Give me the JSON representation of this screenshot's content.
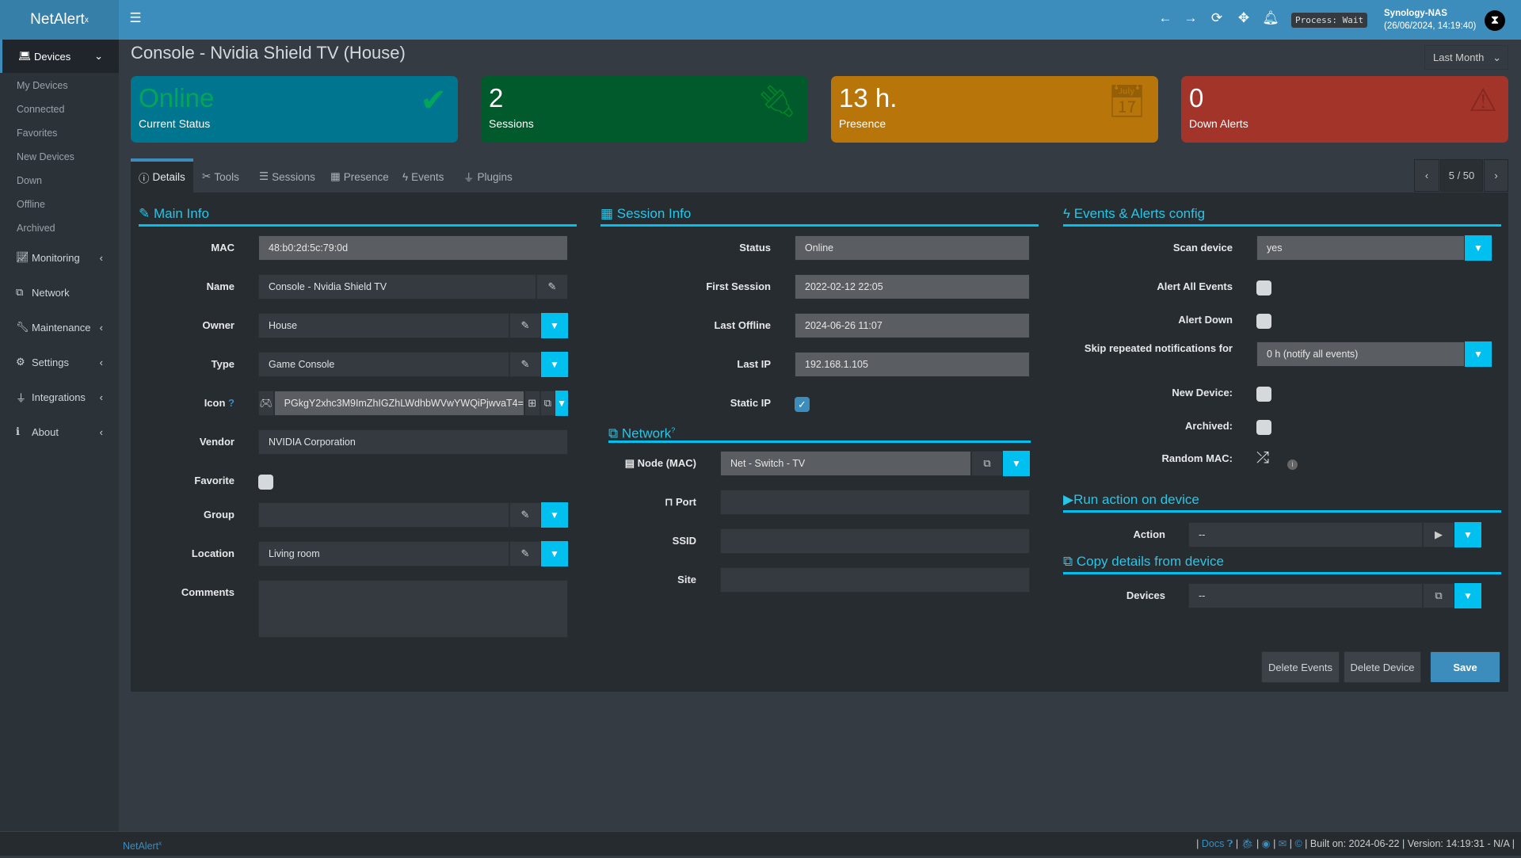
{
  "app": {
    "logo": "NetAlert",
    "logo_sup": "x"
  },
  "header": {
    "process": "Process: Wait",
    "host": "Synology-NAS",
    "datetime": "(26/06/2024, 14:19:40)",
    "icons": [
      "menu-icon",
      "arrow-left-icon",
      "arrow-right-icon",
      "refresh-icon",
      "move-icon",
      "bell-icon"
    ]
  },
  "sidebar": {
    "devices": "Devices",
    "sub": [
      "My Devices",
      "Connected",
      "Favorites",
      "New Devices",
      "Down",
      "Offline",
      "Archived"
    ],
    "items": [
      "Monitoring",
      "Network",
      "Maintenance",
      "Settings",
      "Integrations",
      "About"
    ]
  },
  "page": {
    "title": "Console - Nvidia Shield TV (House)",
    "range": "Last Month"
  },
  "cards": [
    {
      "value": "Online",
      "label": "Current Status",
      "color": "#00758f",
      "value_color": "#00a65a"
    },
    {
      "value": "2",
      "label": "Sessions",
      "color": "#005a2c"
    },
    {
      "value": "13 h.",
      "label": "Presence",
      "color": "#b8760a"
    },
    {
      "value": "0",
      "label": "Down Alerts",
      "color": "#a3342a"
    }
  ],
  "tabs": [
    "Details",
    "Tools",
    "Sessions",
    "Presence",
    "Events",
    "Plugins"
  ],
  "pager": {
    "position": "5 / 50"
  },
  "main_info": {
    "title": "Main Info",
    "mac_label": "MAC",
    "mac": "48:b0:2d:5c:79:0d",
    "name_label": "Name",
    "name": "Console - Nvidia Shield TV",
    "owner_label": "Owner",
    "owner": "House",
    "type_label": "Type",
    "type": "Game Console",
    "icon_label": "Icon",
    "icon": "PGkgY2xhc3M9ImZhIGZhLWdhbWVwYWQiPjwvaT4=",
    "vendor_label": "Vendor",
    "vendor": "NVIDIA Corporation",
    "favorite_label": "Favorite",
    "group_label": "Group",
    "group": "",
    "location_label": "Location",
    "location": "Living room",
    "comments_label": "Comments",
    "comments": ""
  },
  "session_info": {
    "title": "Session Info",
    "status_label": "Status",
    "status": "Online",
    "first_label": "First Session",
    "first": "2022-02-12  22:05",
    "offline_label": "Last Offline",
    "offline": "2024-06-26  11:07",
    "ip_label": "Last IP",
    "ip": "192.168.1.105",
    "static_label": "Static IP",
    "static_ip": true
  },
  "network": {
    "title": "Network",
    "node_label": "Node (MAC)",
    "node": "Net - Switch - TV",
    "port_label": "Port",
    "port": "",
    "ssid_label": "SSID",
    "ssid": "",
    "site_label": "Site",
    "site": ""
  },
  "events": {
    "title": "Events & Alerts config",
    "scan_label": "Scan device",
    "scan": "yes",
    "alert_all_label": "Alert All Events",
    "alert_down_label": "Alert Down",
    "skip_label": "Skip repeated notifications for",
    "skip": "0 h (notify all events)",
    "new_label": "New Device:",
    "archived_label": "Archived:",
    "random_label": "Random MAC:"
  },
  "run_action": {
    "title": "Run action on device",
    "action_label": "Action",
    "action": "--"
  },
  "copy": {
    "title": "Copy details from device",
    "devices_label": "Devices",
    "devices": "--"
  },
  "buttons": {
    "delete_events": "Delete Events",
    "delete_device": "Delete Device",
    "save": "Save"
  },
  "footer": {
    "brand": "NetAlert",
    "brand_sup": "x",
    "docs": "Docs",
    "built": "Built on: 2024-06-22",
    "version": "Version: 14:19:31 - N/A"
  }
}
